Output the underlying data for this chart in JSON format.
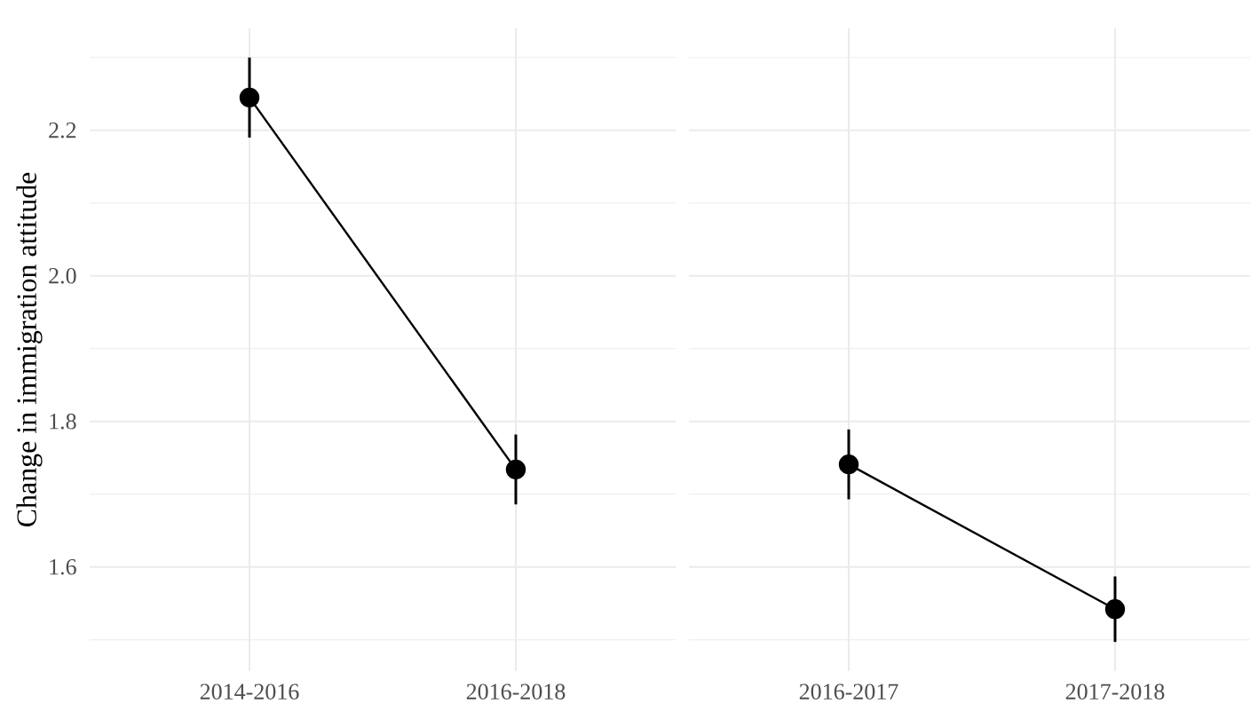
{
  "chart_data": [
    {
      "type": "line",
      "ylabel": "Change in immigration attitude",
      "categories": [
        "2014-2016",
        "2016-2018"
      ],
      "values": [
        2.245,
        1.734
      ],
      "errors": [
        0.055,
        0.048
      ],
      "color": "#000000",
      "marker": "circle",
      "line_style": "solid",
      "grid": true,
      "ylim": [
        1.457,
        2.34
      ],
      "yticks": [
        {
          "value": 1.5,
          "label": null
        },
        1.6,
        {
          "value": 1.7,
          "label": null
        },
        1.8,
        {
          "value": 1.9,
          "label": null
        },
        {
          "value": 2,
          "label": "2.0"
        },
        {
          "value": 2.1,
          "label": null
        },
        2.2,
        {
          "value": 2.3,
          "label": null
        }
      ]
    },
    {
      "type": "line",
      "categories": [
        "2016-2017",
        "2017-2018"
      ],
      "values": [
        1.741,
        1.542
      ],
      "errors": [
        0.048,
        0.045
      ],
      "color": "#000000",
      "marker": "circle",
      "line_style": "solid",
      "grid": true,
      "tick_labels": "x",
      "ylim": [
        1.457,
        2.34
      ],
      "yticks": [
        {
          "value": 1.5,
          "label": null
        },
        1.6,
        {
          "value": 1.7,
          "label": null
        },
        1.8,
        {
          "value": 1.9,
          "label": null
        },
        2,
        {
          "value": 2.1,
          "label": null
        },
        2.2,
        {
          "value": 2.3,
          "label": null
        }
      ]
    }
  ]
}
